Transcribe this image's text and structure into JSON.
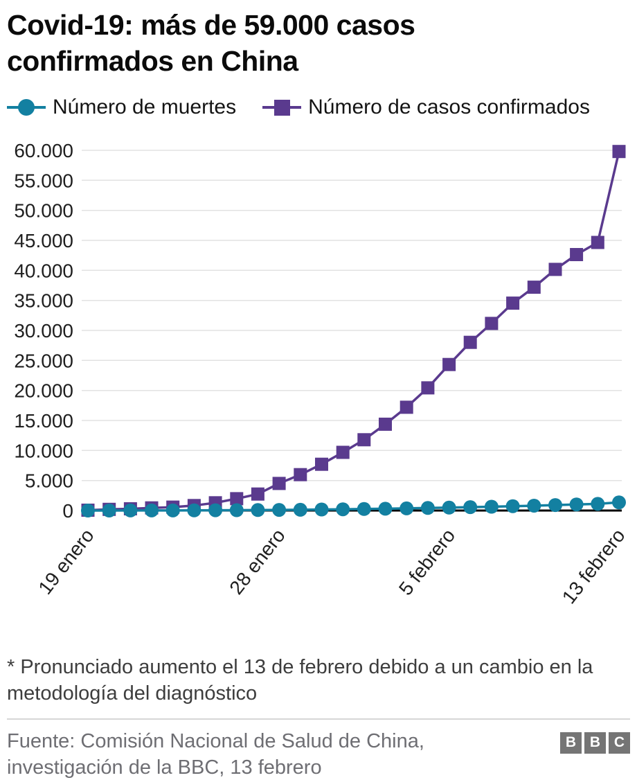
{
  "header": {
    "title": "Covid-19: más de 59.000 casos confirmados en China"
  },
  "chart_data": {
    "type": "line",
    "title": "Covid-19: más de 59.000 casos confirmados en China",
    "x": [
      "19 enero",
      "20 enero",
      "21 enero",
      "22 enero",
      "23 enero",
      "24 enero",
      "25 enero",
      "26 enero",
      "27 enero",
      "28 enero",
      "29 enero",
      "30 enero",
      "31 enero",
      "1 febrero",
      "2 febrero",
      "3 febrero",
      "4 febrero",
      "5 febrero",
      "6 febrero",
      "7 febrero",
      "8 febrero",
      "9 febrero",
      "10 febrero",
      "11 febrero",
      "12 febrero",
      "13 febrero"
    ],
    "x_tick_labels": [
      "19 enero",
      "28 enero",
      "5 febrero",
      "13 febrero"
    ],
    "x_tick_indices": [
      0,
      9,
      17,
      25
    ],
    "ylim": [
      0,
      60000
    ],
    "y_ticks": [
      0,
      5000,
      10000,
      15000,
      20000,
      25000,
      30000,
      35000,
      40000,
      45000,
      50000,
      55000,
      60000
    ],
    "y_tick_labels": [
      "0",
      "5.000",
      "10.000",
      "15.000",
      "20.000",
      "25.000",
      "30.000",
      "35.000",
      "40.000",
      "45.000",
      "50.000",
      "55.000",
      "60.000"
    ],
    "grid": "horizontal",
    "legend_position": "top",
    "series": [
      {
        "name": "Número de muertes",
        "marker": "circle",
        "color": "#1380A1",
        "values": [
          2,
          3,
          6,
          9,
          17,
          25,
          41,
          56,
          80,
          106,
          132,
          170,
          213,
          259,
          304,
          361,
          425,
          490,
          563,
          637,
          722,
          811,
          908,
          1016,
          1113,
          1367
        ]
      },
      {
        "name": "Número de casos confirmados",
        "marker": "square",
        "color": "#5A3A8E",
        "values": [
          62,
          198,
          291,
          440,
          571,
          830,
          1287,
          1975,
          2744,
          4515,
          5974,
          7711,
          9692,
          11791,
          14380,
          17205,
          20438,
          24324,
          28018,
          31161,
          34546,
          37198,
          40171,
          42638,
          44653,
          59804
        ]
      }
    ]
  },
  "footnote": {
    "text": "* Pronunciado aumento el 13 de febrero debido a un cambio en la metodología del diagnóstico"
  },
  "footer": {
    "source": "Fuente: Comisión Nacional de Salud de China, investigación de la BBC, 13 febrero",
    "logo_letters": [
      "B",
      "B",
      "C"
    ]
  }
}
